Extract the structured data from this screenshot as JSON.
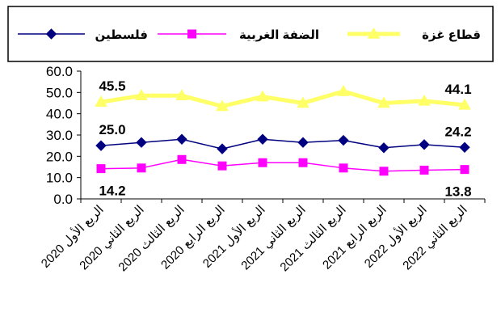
{
  "chart_data": {
    "type": "line",
    "categories": [
      "الربع الأول 2020",
      "الربع الثاني 2020",
      "الربع الثالث 2020",
      "الربع الرابع 2020",
      "الربع الأول 2021",
      "الربع الثاني 2021",
      "الربع الثالث 2021",
      "الربع الرابع 2021",
      "الربع الأول 2022",
      "الربع الثاني 2022"
    ],
    "series": [
      {
        "name": "قطاع غزة",
        "color": "#FFFF66",
        "marker": "triangle",
        "values": [
          45.5,
          48.5,
          48.5,
          43.5,
          48.0,
          45.0,
          50.5,
          45.0,
          46.0,
          44.1
        ]
      },
      {
        "name": "الضفة الغربية",
        "color": "#FF00FF",
        "marker": "square",
        "values": [
          14.2,
          14.5,
          18.5,
          15.5,
          17.0,
          17.0,
          14.5,
          13.0,
          13.5,
          13.8
        ]
      },
      {
        "name": "فلسطين",
        "color": "#000080",
        "marker": "diamond",
        "values": [
          25.0,
          26.5,
          28.0,
          23.5,
          28.0,
          26.5,
          27.5,
          24.0,
          25.5,
          24.2
        ]
      }
    ],
    "y_ticks": [
      "0.0",
      "10.0",
      "20.0",
      "30.0",
      "40.0",
      "50.0",
      "60.0"
    ],
    "ylim": [
      0,
      60
    ],
    "grid": false,
    "legend_position": "top",
    "data_labels": [
      {
        "series": 0,
        "index": 0,
        "text": "45.5"
      },
      {
        "series": 0,
        "index": 9,
        "text": "44.1"
      },
      {
        "series": 2,
        "index": 0,
        "text": "25.0"
      },
      {
        "series": 2,
        "index": 9,
        "text": "24.2"
      },
      {
        "series": 1,
        "index": 0,
        "text": "14.2"
      },
      {
        "series": 1,
        "index": 9,
        "text": "13.8"
      }
    ]
  }
}
